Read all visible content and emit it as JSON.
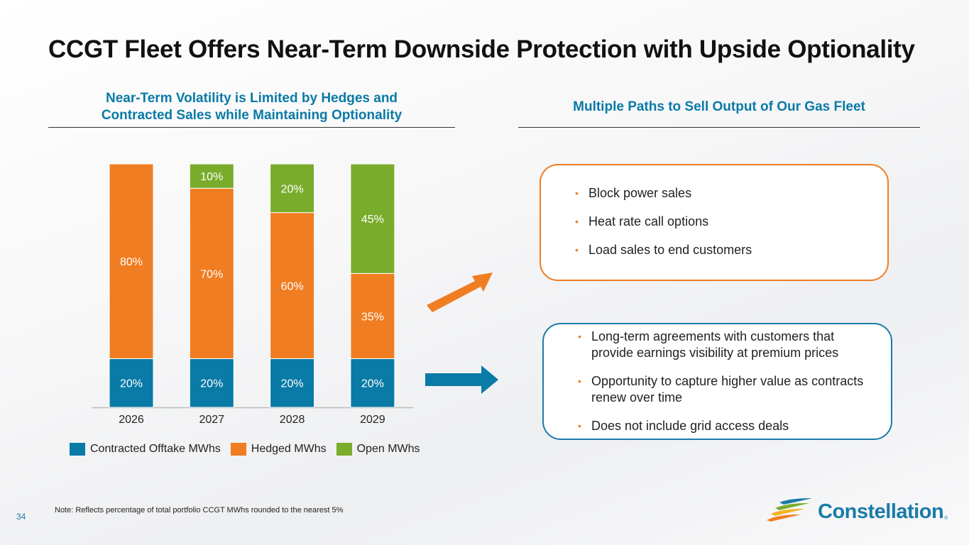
{
  "title": "CCGT Fleet Offers Near-Term Downside Protection with Upside Optionality",
  "left_heading_line1": "Near-Term Volatility is Limited by Hedges and",
  "left_heading_line2": "Contracted Sales while Maintaining Optionality",
  "right_heading": "Multiple Paths to Sell Output of Our Gas Fleet",
  "colors": {
    "contracted": "#0a7aa6",
    "hedged": "#f07d22",
    "open": "#7aac2c",
    "accent_blue": "#1a7ba7"
  },
  "chart_data": {
    "type": "bar",
    "stacked": true,
    "categories": [
      "2026",
      "2027",
      "2028",
      "2029"
    ],
    "series": [
      {
        "name": "Contracted Offtake MWhs",
        "values": [
          20,
          20,
          20,
          20
        ],
        "labels": [
          "20%",
          "20%",
          "20%",
          "20%"
        ],
        "color": "#0a7aa6"
      },
      {
        "name": "Hedged MWhs",
        "values": [
          80,
          70,
          60,
          35
        ],
        "labels": [
          "80%",
          "70%",
          "60%",
          "35%"
        ],
        "color": "#f07d22"
      },
      {
        "name": "Open MWhs",
        "values": [
          0,
          10,
          20,
          45
        ],
        "labels": [
          "",
          "10%",
          "20%",
          "45%"
        ],
        "color": "#7aac2c"
      }
    ],
    "ylim": [
      0,
      100
    ],
    "unit": "%"
  },
  "legend": [
    {
      "label": "Contracted Offtake MWhs",
      "color": "#0a7aa6"
    },
    {
      "label": "Hedged MWhs",
      "color": "#f07d22"
    },
    {
      "label": "Open MWhs",
      "color": "#7aac2c"
    }
  ],
  "box_top": {
    "items": [
      "Block power sales",
      "Heat rate call options",
      "Load sales to end customers"
    ]
  },
  "box_bottom": {
    "items": [
      "Long-term agreements with customers that provide earnings visibility at premium prices",
      "Opportunity to capture higher value as contracts renew over time",
      "Does not include grid access deals"
    ]
  },
  "bullet_char": "•",
  "page_number": "34",
  "note": "Note: Reflects percentage of total portfolio CCGT MWhs rounded to the nearest 5%",
  "logo_text": "Constellation",
  "logo_reg": "®"
}
